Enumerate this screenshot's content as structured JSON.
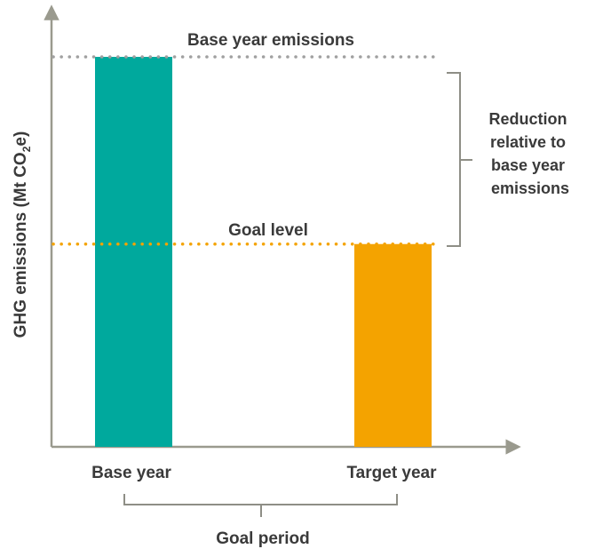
{
  "chart_data": {
    "type": "bar",
    "categories": [
      "Base year",
      "Target year"
    ],
    "values": [
      100,
      52
    ],
    "ylabel_main": "GHG emissions (Mt CO",
    "ylabel_sub": "2",
    "ylabel_end": "e)",
    "xlabel": "",
    "reference_lines": [
      {
        "label": "Base year emissions",
        "value": 100
      },
      {
        "label": "Goal level",
        "value": 52
      }
    ],
    "annotations": {
      "reduction": [
        "Reduction",
        "relative to",
        "base year",
        "emissions"
      ],
      "period": "Goal period"
    },
    "grid": false,
    "colors": {
      "base_bar": "#00a99d",
      "target_bar": "#f4a300",
      "base_line": "#a0a0a0",
      "goal_line": "#f4a300",
      "axis": "#9a9a8e",
      "text": "#3a3a3a"
    }
  }
}
